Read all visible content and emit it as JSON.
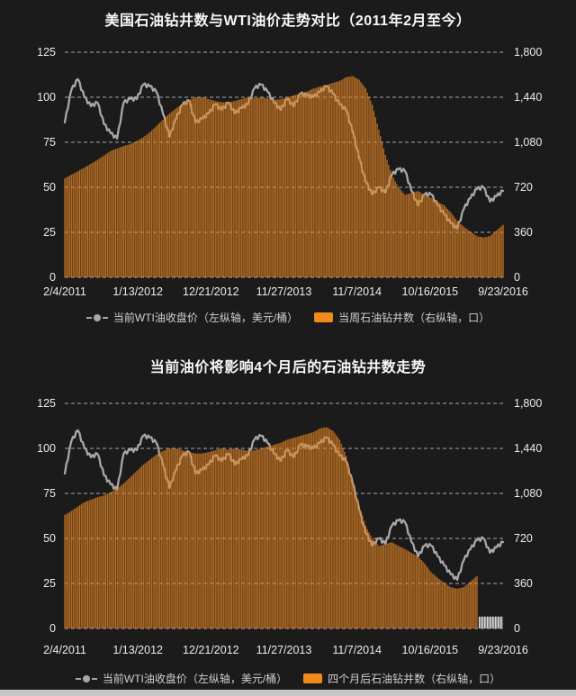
{
  "theme": {
    "background": "#1b1b1b",
    "bar": "#e08424",
    "bar_legend": "#f18a1d",
    "line": "#a8a8a8",
    "grid": "#e6e6e6",
    "axis_text": "#ececec",
    "title_text": "#f7f7f7",
    "legend_text": "#cfcfcf",
    "footer_bar": "#c7c7c7",
    "hatch_light": "#d8d8d8",
    "hatch_dark": "#6f6f6f"
  },
  "charts": [
    {
      "title": "美国石油钻井数与WTI油价走势对比（2011年2月至今）",
      "legend": [
        {
          "marker": "line",
          "label": "当前WTI油收盘价（左纵轴，美元/桶）"
        },
        {
          "marker": "bar",
          "label": "当周石油钻井数（右纵轴，口）"
        }
      ]
    },
    {
      "title": "当前油价将影响4个月后的石油钻井数走势",
      "legend": [
        {
          "marker": "line",
          "label": "当前WTI油收盘价（左纵轴，美元/桶）"
        },
        {
          "marker": "bar",
          "label": "四个月后石油钻井数（右纵轴，口）"
        }
      ]
    }
  ],
  "chart_data": [
    {
      "type": "bar+line",
      "title": "美国石油钻井数与WTI油价走势对比（2011年2月至今）",
      "x_tick_labels": [
        "2/4/2011",
        "1/13/2012",
        "12/21/2012",
        "11/27/2013",
        "11/7/2014",
        "10/16/2015",
        "9/23/2016"
      ],
      "x_months": [
        "2011-02",
        "2011-03",
        "2011-04",
        "2011-05",
        "2011-06",
        "2011-07",
        "2011-08",
        "2011-09",
        "2011-10",
        "2011-11",
        "2011-12",
        "2012-01",
        "2012-02",
        "2012-03",
        "2012-04",
        "2012-05",
        "2012-06",
        "2012-07",
        "2012-08",
        "2012-09",
        "2012-10",
        "2012-11",
        "2012-12",
        "2013-01",
        "2013-02",
        "2013-03",
        "2013-04",
        "2013-05",
        "2013-06",
        "2013-07",
        "2013-08",
        "2013-09",
        "2013-10",
        "2013-11",
        "2013-12",
        "2014-01",
        "2014-02",
        "2014-03",
        "2014-04",
        "2014-05",
        "2014-06",
        "2014-07",
        "2014-08",
        "2014-09",
        "2014-10",
        "2014-11",
        "2014-12",
        "2015-01",
        "2015-02",
        "2015-03",
        "2015-04",
        "2015-05",
        "2015-06",
        "2015-07",
        "2015-08",
        "2015-09",
        "2015-10",
        "2015-11",
        "2015-12",
        "2016-01",
        "2016-02",
        "2016-03",
        "2016-04",
        "2016-05",
        "2016-06",
        "2016-07",
        "2016-08",
        "2016-09"
      ],
      "left_axis": {
        "ticks": [
          0,
          25,
          50,
          75,
          100,
          125
        ],
        "range": [
          0,
          125
        ],
        "grid": "dashed"
      },
      "right_axis": {
        "tick_labels": [
          "0",
          "360",
          "720",
          "1,080",
          "1,440",
          "1,800"
        ],
        "range": [
          0,
          1800
        ]
      },
      "series": [
        {
          "name": "当前WTI油收盘价",
          "type": "line",
          "axis": "left",
          "values": [
            86,
            104,
            110,
            100,
            95,
            97,
            85,
            80,
            77,
            97,
            99,
            99,
            107,
            106,
            103,
            91,
            78,
            88,
            96,
            98,
            86,
            88,
            91,
            96,
            93,
            97,
            91,
            94,
            96,
            105,
            107,
            103,
            97,
            93,
            99,
            95,
            102,
            101,
            100,
            103,
            106,
            102,
            96,
            93,
            81,
            66,
            53,
            46,
            50,
            47,
            57,
            60,
            59,
            48,
            40,
            46,
            46,
            40,
            35,
            30,
            27,
            38,
            44,
            49,
            50,
            42,
            45,
            48
          ]
        },
        {
          "name": "当周石油钻井数",
          "type": "bar",
          "axis": "right",
          "values": [
            792,
            820,
            848,
            878,
            908,
            940,
            975,
            1010,
            1030,
            1050,
            1065,
            1090,
            1120,
            1160,
            1210,
            1260,
            1310,
            1350,
            1390,
            1420,
            1440,
            1440,
            1425,
            1410,
            1400,
            1400,
            1410,
            1425,
            1440,
            1430,
            1440,
            1430,
            1420,
            1425,
            1440,
            1455,
            1470,
            1485,
            1510,
            1525,
            1540,
            1555,
            1570,
            1600,
            1610,
            1580,
            1510,
            1380,
            1180,
            980,
            820,
            720,
            660,
            675,
            690,
            660,
            635,
            605,
            575,
            520,
            450,
            405,
            365,
            330,
            318,
            330,
            375,
            420
          ]
        }
      ]
    },
    {
      "type": "bar+line",
      "title": "当前油价将影响4个月后的石油钻井数走势",
      "x_tick_labels": [
        "2/4/2011",
        "1/13/2012",
        "12/21/2012",
        "11/27/2013",
        "11/7/2014",
        "10/16/2015",
        "9/23/2016"
      ],
      "x_months": [
        "2011-02",
        "2011-03",
        "2011-04",
        "2011-05",
        "2011-06",
        "2011-07",
        "2011-08",
        "2011-09",
        "2011-10",
        "2011-11",
        "2011-12",
        "2012-01",
        "2012-02",
        "2012-03",
        "2012-04",
        "2012-05",
        "2012-06",
        "2012-07",
        "2012-08",
        "2012-09",
        "2012-10",
        "2012-11",
        "2012-12",
        "2013-01",
        "2013-02",
        "2013-03",
        "2013-04",
        "2013-05",
        "2013-06",
        "2013-07",
        "2013-08",
        "2013-09",
        "2013-10",
        "2013-11",
        "2013-12",
        "2014-01",
        "2014-02",
        "2014-03",
        "2014-04",
        "2014-05",
        "2014-06",
        "2014-07",
        "2014-08",
        "2014-09",
        "2014-10",
        "2014-11",
        "2014-12",
        "2015-01",
        "2015-02",
        "2015-03",
        "2015-04",
        "2015-05",
        "2015-06",
        "2015-07",
        "2015-08",
        "2015-09",
        "2015-10",
        "2015-11",
        "2015-12",
        "2016-01",
        "2016-02",
        "2016-03",
        "2016-04",
        "2016-05",
        "2016-06",
        "2016-07",
        "2016-08",
        "2016-09"
      ],
      "left_axis": {
        "ticks": [
          0,
          25,
          50,
          75,
          100,
          125
        ],
        "range": [
          0,
          125
        ],
        "grid": "dashed"
      },
      "right_axis": {
        "tick_labels": [
          "0",
          "360",
          "720",
          "1,080",
          "1,440",
          "1,800"
        ],
        "range": [
          0,
          1800
        ]
      },
      "series": [
        {
          "name": "当前WTI油收盘价",
          "type": "line",
          "axis": "left",
          "values": [
            86,
            104,
            110,
            100,
            95,
            97,
            85,
            80,
            77,
            97,
            99,
            99,
            107,
            106,
            103,
            91,
            78,
            88,
            96,
            98,
            86,
            88,
            91,
            96,
            93,
            97,
            91,
            94,
            96,
            105,
            107,
            103,
            97,
            93,
            99,
            95,
            102,
            101,
            100,
            103,
            106,
            102,
            96,
            93,
            81,
            66,
            53,
            46,
            50,
            47,
            57,
            60,
            59,
            48,
            40,
            46,
            46,
            40,
            35,
            30,
            27,
            38,
            44,
            49,
            50,
            42,
            45,
            48
          ]
        },
        {
          "name": "四个月后石油钻井数",
          "type": "bar",
          "axis": "right",
          "shift_months": 4,
          "values": [
            908,
            940,
            975,
            1010,
            1030,
            1050,
            1065,
            1090,
            1120,
            1160,
            1210,
            1260,
            1310,
            1350,
            1390,
            1420,
            1440,
            1440,
            1425,
            1410,
            1400,
            1400,
            1410,
            1425,
            1440,
            1430,
            1440,
            1430,
            1420,
            1425,
            1440,
            1455,
            1470,
            1485,
            1510,
            1525,
            1540,
            1555,
            1570,
            1600,
            1610,
            1580,
            1510,
            1380,
            1180,
            980,
            820,
            720,
            660,
            675,
            690,
            660,
            635,
            605,
            575,
            520,
            450,
            405,
            365,
            330,
            318,
            330,
            375,
            420
          ]
        }
      ],
      "future_placeholder": {
        "months": 4,
        "height_units": 95,
        "style": "gray-hatch"
      }
    }
  ]
}
